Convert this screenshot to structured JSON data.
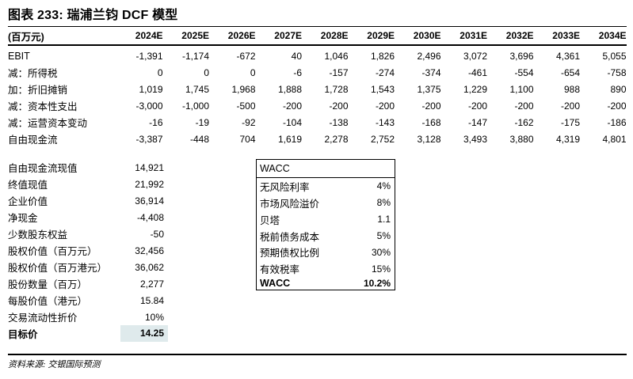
{
  "title": "图表 233: 瑞浦兰钧 DCF 模型",
  "table": {
    "unit_label": "(百万元)",
    "years": [
      "2024E",
      "2025E",
      "2026E",
      "2027E",
      "2028E",
      "2029E",
      "2030E",
      "2031E",
      "2032E",
      "2033E",
      "2034E"
    ],
    "rows": [
      {
        "label": "EBIT",
        "values": [
          "-1,391",
          "-1,174",
          "-672",
          "40",
          "1,046",
          "1,826",
          "2,496",
          "3,072",
          "3,696",
          "4,361",
          "5,055"
        ]
      },
      {
        "label": "减：所得税",
        "values": [
          "0",
          "0",
          "0",
          "-6",
          "-157",
          "-274",
          "-374",
          "-461",
          "-554",
          "-654",
          "-758"
        ]
      },
      {
        "label": "加：折旧摊销",
        "values": [
          "1,019",
          "1,745",
          "1,968",
          "1,888",
          "1,728",
          "1,543",
          "1,375",
          "1,229",
          "1,100",
          "988",
          "890"
        ]
      },
      {
        "label": "减：资本性支出",
        "values": [
          "-3,000",
          "-1,000",
          "-500",
          "-200",
          "-200",
          "-200",
          "-200",
          "-200",
          "-200",
          "-200",
          "-200"
        ]
      },
      {
        "label": "减：运营资本变动",
        "values": [
          "-16",
          "-19",
          "-92",
          "-104",
          "-138",
          "-143",
          "-168",
          "-147",
          "-162",
          "-175",
          "-186"
        ]
      },
      {
        "label": "自由现金流",
        "values": [
          "-3,387",
          "-448",
          "704",
          "1,619",
          "2,278",
          "2,752",
          "3,128",
          "3,493",
          "3,880",
          "4,319",
          "4,801"
        ]
      }
    ]
  },
  "valuation": {
    "rows": [
      {
        "label": "自由现金流现值",
        "value": "14,921"
      },
      {
        "label": "终值现值",
        "value": "21,992"
      },
      {
        "label": "企业价值",
        "value": "36,914"
      },
      {
        "label": "净现金",
        "value": "-4,408"
      },
      {
        "label": "少数股东权益",
        "value": "-50"
      },
      {
        "label": "股权价值（百万元）",
        "value": "32,456"
      },
      {
        "label": "股权价值（百万港元）",
        "value": "36,062"
      },
      {
        "label": "股份数量（百万）",
        "value": "2,277"
      },
      {
        "label": "每股价值（港元）",
        "value": "15.84"
      },
      {
        "label": "交易流动性折价",
        "value": "10%"
      },
      {
        "label": "目标价",
        "value": "14.25"
      }
    ]
  },
  "wacc_box": {
    "header": "WACC",
    "rows": [
      {
        "label": "无风险利率",
        "value": "4%"
      },
      {
        "label": "市场风险溢价",
        "value": "8%"
      },
      {
        "label": "贝塔",
        "value": "1.1"
      },
      {
        "label": "税前债务成本",
        "value": "5%"
      },
      {
        "label": "预期债权比例",
        "value": "30%"
      },
      {
        "label": "有效税率",
        "value": "15%"
      },
      {
        "label": "WACC",
        "value": "10.2%"
      }
    ]
  },
  "footer": "资料来源: 交银国际预测",
  "colors": {
    "highlight": "#dfeaec",
    "text": "#000000",
    "rule": "#000000"
  }
}
